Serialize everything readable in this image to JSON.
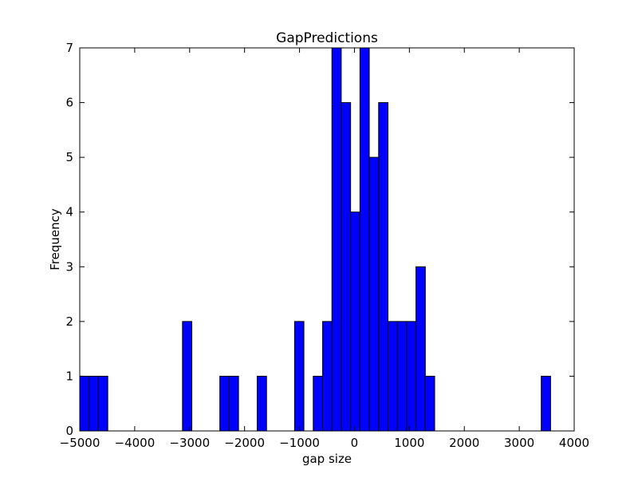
{
  "chart_data": {
    "type": "bar",
    "title": "GapPredictions",
    "xlabel": "gap size",
    "ylabel": "Frequency",
    "xlim": [
      -5000,
      4000
    ],
    "ylim": [
      0,
      7
    ],
    "xticks": [
      -5000,
      -4000,
      -3000,
      -2000,
      -1000,
      0,
      1000,
      2000,
      3000,
      4000
    ],
    "yticks": [
      0,
      1,
      2,
      3,
      4,
      5,
      6,
      7
    ],
    "bin_width": 170,
    "bins": [
      {
        "x": -4915,
        "y": 1
      },
      {
        "x": -4745,
        "y": 1
      },
      {
        "x": -4575,
        "y": 1
      },
      {
        "x": -3045,
        "y": 2
      },
      {
        "x": -2365,
        "y": 1
      },
      {
        "x": -2195,
        "y": 1
      },
      {
        "x": -1685,
        "y": 1
      },
      {
        "x": -1005,
        "y": 2
      },
      {
        "x": -665,
        "y": 1
      },
      {
        "x": -495,
        "y": 2
      },
      {
        "x": -325,
        "y": 7
      },
      {
        "x": -155,
        "y": 6
      },
      {
        "x": 15,
        "y": 4
      },
      {
        "x": 185,
        "y": 7
      },
      {
        "x": 355,
        "y": 5
      },
      {
        "x": 525,
        "y": 6
      },
      {
        "x": 695,
        "y": 2
      },
      {
        "x": 865,
        "y": 2
      },
      {
        "x": 1035,
        "y": 2
      },
      {
        "x": 1205,
        "y": 3
      },
      {
        "x": 1375,
        "y": 1
      },
      {
        "x": 3485,
        "y": 1
      }
    ],
    "bar_color": "#0000ff",
    "edge_color": "#000000",
    "grid": false
  }
}
